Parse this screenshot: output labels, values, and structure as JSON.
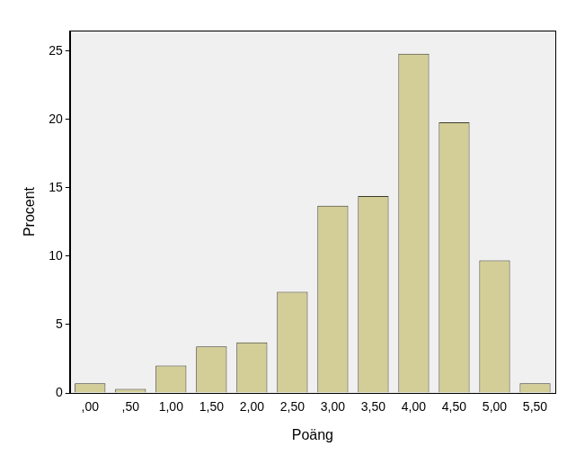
{
  "chart_data": {
    "type": "bar",
    "x_label": "Poäng",
    "y_label": "Procent",
    "categories": [
      ",00",
      ",50",
      "1,00",
      "1,50",
      "2,00",
      "2,50",
      "3,00",
      "3,50",
      "4,00",
      "4,50",
      "5,00",
      "5,50"
    ],
    "values": [
      0.7,
      0.3,
      2.0,
      3.4,
      3.7,
      7.4,
      13.7,
      14.4,
      24.8,
      19.8,
      9.7,
      0.7
    ],
    "color": "#d3ce97",
    "ylim": [
      0,
      26.5
    ],
    "yticks": [
      0,
      5,
      10,
      15,
      20,
      25
    ],
    "grid": false
  }
}
